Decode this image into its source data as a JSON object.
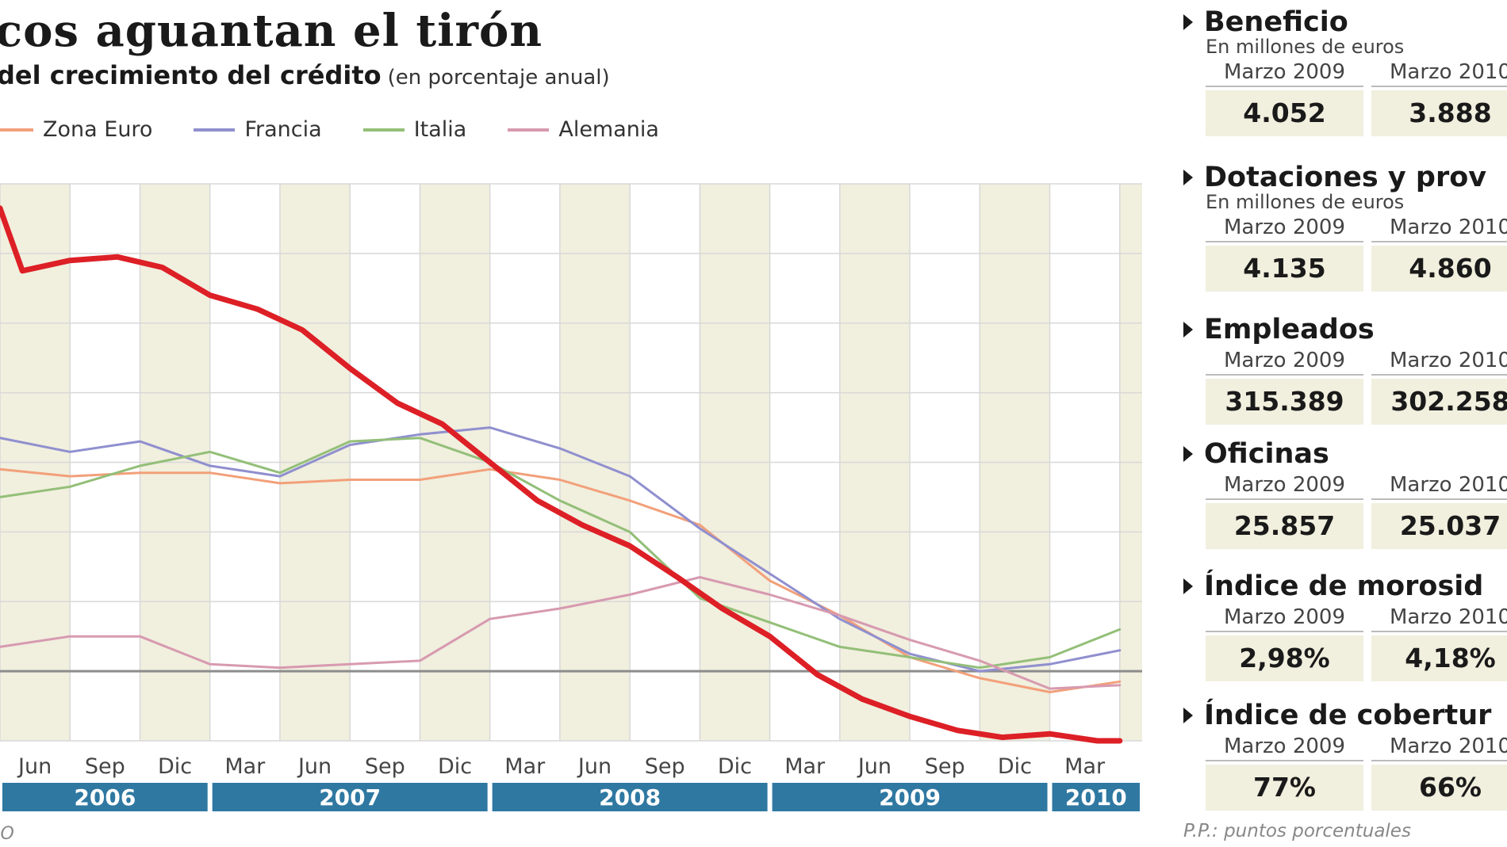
{
  "header": {
    "title": "cos aguantan el tirón",
    "subtitle": "del crecimiento del crédito",
    "subtitle_note": "(en porcentaje anual)"
  },
  "source": "IO",
  "chart_data": {
    "type": "line",
    "title": "",
    "xlabel": "",
    "ylabel": "",
    "x_range": [
      2006.25,
      2010.33
    ],
    "y_range": [
      -2.0,
      14.0
    ],
    "grid": true,
    "legend_position": "top-left",
    "x_ticks": [
      {
        "label": "Jun",
        "x": 2006.375
      },
      {
        "label": "Sep",
        "x": 2006.625
      },
      {
        "label": "Dic",
        "x": 2006.875
      },
      {
        "label": "Mar",
        "x": 2007.125
      },
      {
        "label": "Jun",
        "x": 2007.375
      },
      {
        "label": "Sep",
        "x": 2007.625
      },
      {
        "label": "Dic",
        "x": 2007.875
      },
      {
        "label": "Mar",
        "x": 2008.125
      },
      {
        "label": "Jun",
        "x": 2008.375
      },
      {
        "label": "Sep",
        "x": 2008.625
      },
      {
        "label": "Dic",
        "x": 2008.875
      },
      {
        "label": "Mar",
        "x": 2009.125
      },
      {
        "label": "Jun",
        "x": 2009.375
      },
      {
        "label": "Sep",
        "x": 2009.625
      },
      {
        "label": "Dic",
        "x": 2009.875
      },
      {
        "label": "Mar",
        "x": 2010.125
      }
    ],
    "years": [
      {
        "label": "2006",
        "start": 2006.25,
        "end": 2007.0
      },
      {
        "label": "2007",
        "start": 2007.0,
        "end": 2008.0
      },
      {
        "label": "2008",
        "start": 2008.0,
        "end": 2009.0
      },
      {
        "label": "2009",
        "start": 2009.0,
        "end": 2010.0
      },
      {
        "label": "2010",
        "start": 2010.0,
        "end": 2010.33
      }
    ],
    "series": [
      {
        "name": "Zona Euro",
        "color": "#f2a07a",
        "x": [
          2006.25,
          2006.5,
          2006.75,
          2007.0,
          2007.25,
          2007.5,
          2007.75,
          2008.0,
          2008.25,
          2008.5,
          2008.75,
          2009.0,
          2009.25,
          2009.5,
          2009.75,
          2010.0,
          2010.25
        ],
        "y": [
          5.8,
          5.6,
          5.7,
          5.7,
          5.4,
          5.5,
          5.5,
          5.8,
          5.5,
          4.9,
          4.2,
          2.6,
          1.6,
          0.4,
          -0.2,
          -0.6,
          -0.3
        ]
      },
      {
        "name": "Francia",
        "color": "#8f8fcf",
        "x": [
          2006.25,
          2006.5,
          2006.75,
          2007.0,
          2007.25,
          2007.5,
          2007.75,
          2008.0,
          2008.25,
          2008.5,
          2008.75,
          2009.0,
          2009.25,
          2009.5,
          2009.75,
          2010.0,
          2010.25
        ],
        "y": [
          6.7,
          6.3,
          6.6,
          5.9,
          5.6,
          6.5,
          6.8,
          7.0,
          6.4,
          5.6,
          4.1,
          2.8,
          1.5,
          0.5,
          0.0,
          0.2,
          0.6
        ]
      },
      {
        "name": "Italia",
        "color": "#93bf78",
        "x": [
          2006.25,
          2006.5,
          2006.75,
          2007.0,
          2007.25,
          2007.5,
          2007.75,
          2008.0,
          2008.25,
          2008.5,
          2008.75,
          2009.0,
          2009.25,
          2009.5,
          2009.75,
          2010.0,
          2010.25
        ],
        "y": [
          5.0,
          5.3,
          5.9,
          6.3,
          5.7,
          6.6,
          6.7,
          6.0,
          4.9,
          4.0,
          2.1,
          1.4,
          0.7,
          0.4,
          0.1,
          0.4,
          1.2
        ]
      },
      {
        "name": "Alemania",
        "color": "#d79ab0",
        "x": [
          2006.25,
          2006.5,
          2006.75,
          2007.0,
          2007.25,
          2007.5,
          2007.75,
          2008.0,
          2008.25,
          2008.5,
          2008.75,
          2009.0,
          2009.25,
          2009.5,
          2009.75,
          2010.0,
          2010.25
        ],
        "y": [
          0.7,
          1.0,
          1.0,
          0.2,
          0.1,
          0.2,
          0.3,
          1.5,
          1.8,
          2.2,
          2.7,
          2.2,
          1.6,
          0.9,
          0.3,
          -0.5,
          -0.4
        ]
      },
      {
        "name": "",
        "color": "#dd1f26",
        "x": [
          2006.25,
          2006.33,
          2006.5,
          2006.67,
          2006.83,
          2007.0,
          2007.17,
          2007.33,
          2007.5,
          2007.67,
          2007.83,
          2008.0,
          2008.17,
          2008.33,
          2008.5,
          2008.67,
          2008.83,
          2009.0,
          2009.17,
          2009.33,
          2009.5,
          2009.67,
          2009.83,
          2010.0,
          2010.17,
          2010.25
        ],
        "y": [
          13.3,
          11.5,
          11.8,
          11.9,
          11.6,
          10.8,
          10.4,
          9.8,
          8.7,
          7.7,
          7.1,
          6.0,
          4.9,
          4.2,
          3.6,
          2.7,
          1.8,
          1.0,
          -0.1,
          -0.8,
          -1.3,
          -1.7,
          -1.9,
          -1.8,
          -2.0,
          -2.0
        ]
      }
    ]
  },
  "kpis": [
    {
      "title": "Beneficio",
      "unit": "En millones de euros",
      "periods": [
        "Marzo 2009",
        "Marzo 2010"
      ],
      "values": [
        "4.052",
        "3.888"
      ]
    },
    {
      "title": "Dotaciones y prov",
      "unit": "En millones de euros",
      "periods": [
        "Marzo 2009",
        "Marzo 2010"
      ],
      "values": [
        "4.135",
        "4.860"
      ]
    },
    {
      "title": "Empleados",
      "unit": "",
      "periods": [
        "Marzo 2009",
        "Marzo 2010"
      ],
      "values": [
        "315.389",
        "302.258"
      ]
    },
    {
      "title": "Oficinas",
      "unit": "",
      "periods": [
        "Marzo 2009",
        "Marzo 2010"
      ],
      "values": [
        "25.857",
        "25.037"
      ]
    },
    {
      "title": "Índice de morosid",
      "unit": "",
      "periods": [
        "Marzo 2009",
        "Marzo 2010"
      ],
      "values": [
        "2,98%",
        "4,18%"
      ]
    },
    {
      "title": "Índice de cobertur",
      "unit": "",
      "periods": [
        "Marzo 2009",
        "Marzo 2010"
      ],
      "values": [
        "77%",
        "66%"
      ]
    }
  ],
  "footnote": "P.P.: puntos porcentuales"
}
